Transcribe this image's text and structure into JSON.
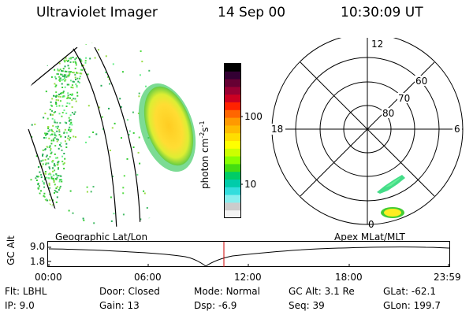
{
  "header": {
    "instrument": "Ultraviolet Imager",
    "date": "14 Sep 00",
    "time": "10:30:09 UT"
  },
  "colorbar": {
    "label": "photon cm",
    "label_exp1": "-2",
    "label_mid": "s",
    "label_exp2": "-1",
    "ticks": [
      "100",
      "10"
    ],
    "colors": [
      "#000000",
      "#330033",
      "#660033",
      "#990033",
      "#cc0022",
      "#ff2200",
      "#ff6600",
      "#ff9900",
      "#ffbb00",
      "#ffdd00",
      "#ffff00",
      "#ccff00",
      "#88ff00",
      "#44dd11",
      "#00cc66",
      "#00ccaa",
      "#33dddd",
      "#88eeee",
      "#cccccc",
      "#f4f4f4"
    ]
  },
  "polar_plot": {
    "mlt_labels": [
      "12",
      "18",
      "6",
      "0"
    ],
    "lat_labels": [
      "80",
      "70",
      "60"
    ]
  },
  "timeline": {
    "left_title": "Geographic Lat/Lon",
    "right_title": "Apex  MLat/MLT",
    "y_axis_label": "GC Alt",
    "y_ticks": [
      "9.0",
      "1.8"
    ],
    "x_ticks": [
      "00:00",
      "06:00",
      "12:00",
      "18:00",
      "23:59"
    ],
    "marker_color": "#cc0000"
  },
  "info": {
    "row1": {
      "flt_label": "Flt:",
      "flt_value": "LBHL",
      "door_label": "Door:",
      "door_value": "Closed",
      "mode_label": "Mode:",
      "mode_value": "Normal",
      "gcalt_label": "GC Alt:",
      "gcalt_value": "3.1 Re",
      "glat_label": "GLat:",
      "glat_value": "-62.1"
    },
    "row2": {
      "ip_label": "IP:",
      "ip_value": "9.0",
      "gain_label": "Gain:",
      "gain_value": "13",
      "dsp_label": "Dsp:",
      "dsp_value": "-6.9",
      "seq_label": "Seq:",
      "seq_value": "39",
      "glon_label": "GLon:",
      "glon_value": "199.7"
    }
  }
}
